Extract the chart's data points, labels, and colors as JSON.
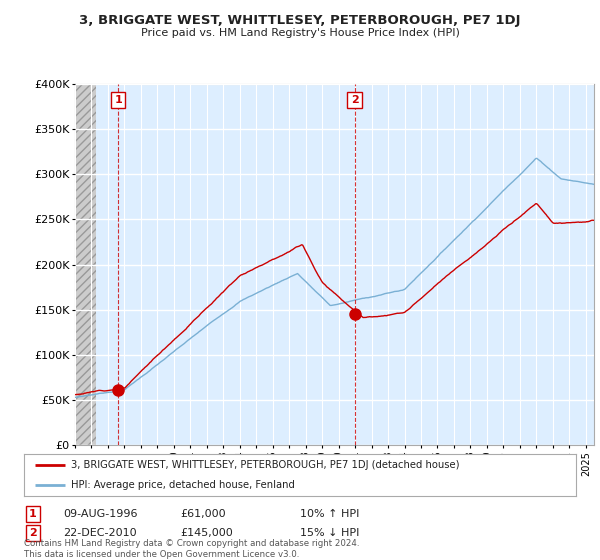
{
  "title1": "3, BRIGGATE WEST, WHITTLESEY, PETERBOROUGH, PE7 1DJ",
  "title2": "Price paid vs. HM Land Registry's House Price Index (HPI)",
  "legend_line1": "3, BRIGGATE WEST, WHITTLESEY, PETERBOROUGH, PE7 1DJ (detached house)",
  "legend_line2": "HPI: Average price, detached house, Fenland",
  "annotation1_date": "09-AUG-1996",
  "annotation1_price": "£61,000",
  "annotation1_hpi": "10% ↑ HPI",
  "annotation2_date": "22-DEC-2010",
  "annotation2_price": "£145,000",
  "annotation2_hpi": "15% ↓ HPI",
  "footer": "Contains HM Land Registry data © Crown copyright and database right 2024.\nThis data is licensed under the Open Government Licence v3.0.",
  "red_line_color": "#cc0000",
  "blue_line_color": "#7ab0d4",
  "background_color": "#ffffff",
  "plot_bg_color": "#ddeeff",
  "grid_color": "#ffffff",
  "ylim": [
    0,
    400000
  ],
  "yticks": [
    0,
    50000,
    100000,
    150000,
    200000,
    250000,
    300000,
    350000,
    400000
  ],
  "sale1_x": 1996.62,
  "sale1_y": 61000,
  "sale2_x": 2010.97,
  "sale2_y": 145000,
  "xlim_left": 1994.0,
  "xlim_right": 2025.5
}
